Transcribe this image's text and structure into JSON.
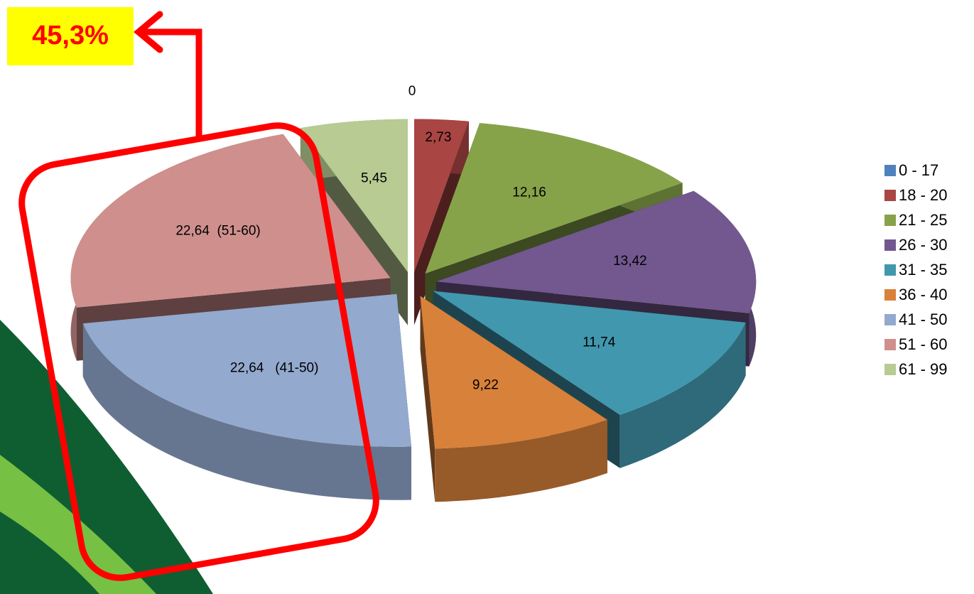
{
  "chart_data": {
    "type": "pie3d",
    "categories": [
      "0 - 17",
      "18 - 20",
      "21 - 25",
      "26 - 30",
      "31 - 35",
      "36 - 40",
      "41 - 50",
      "51 - 60",
      "61 - 99"
    ],
    "values": [
      0,
      2.73,
      12.16,
      13.42,
      11.74,
      9.22,
      22.64,
      22.64,
      5.45
    ],
    "value_labels": [
      "0",
      "2,73",
      "12,16",
      "13,42",
      "11,74",
      "9,22",
      "22,64   (41-50)",
      "22,64  (51-60)",
      "5,45"
    ],
    "colors": [
      "#4f81bd",
      "#a94543",
      "#86a34a",
      "#72588f",
      "#4197ae",
      "#d8813b",
      "#93a9ce",
      "#cf8f8d",
      "#b7cb92"
    ],
    "legend": "right",
    "annotation": "45,3%"
  }
}
